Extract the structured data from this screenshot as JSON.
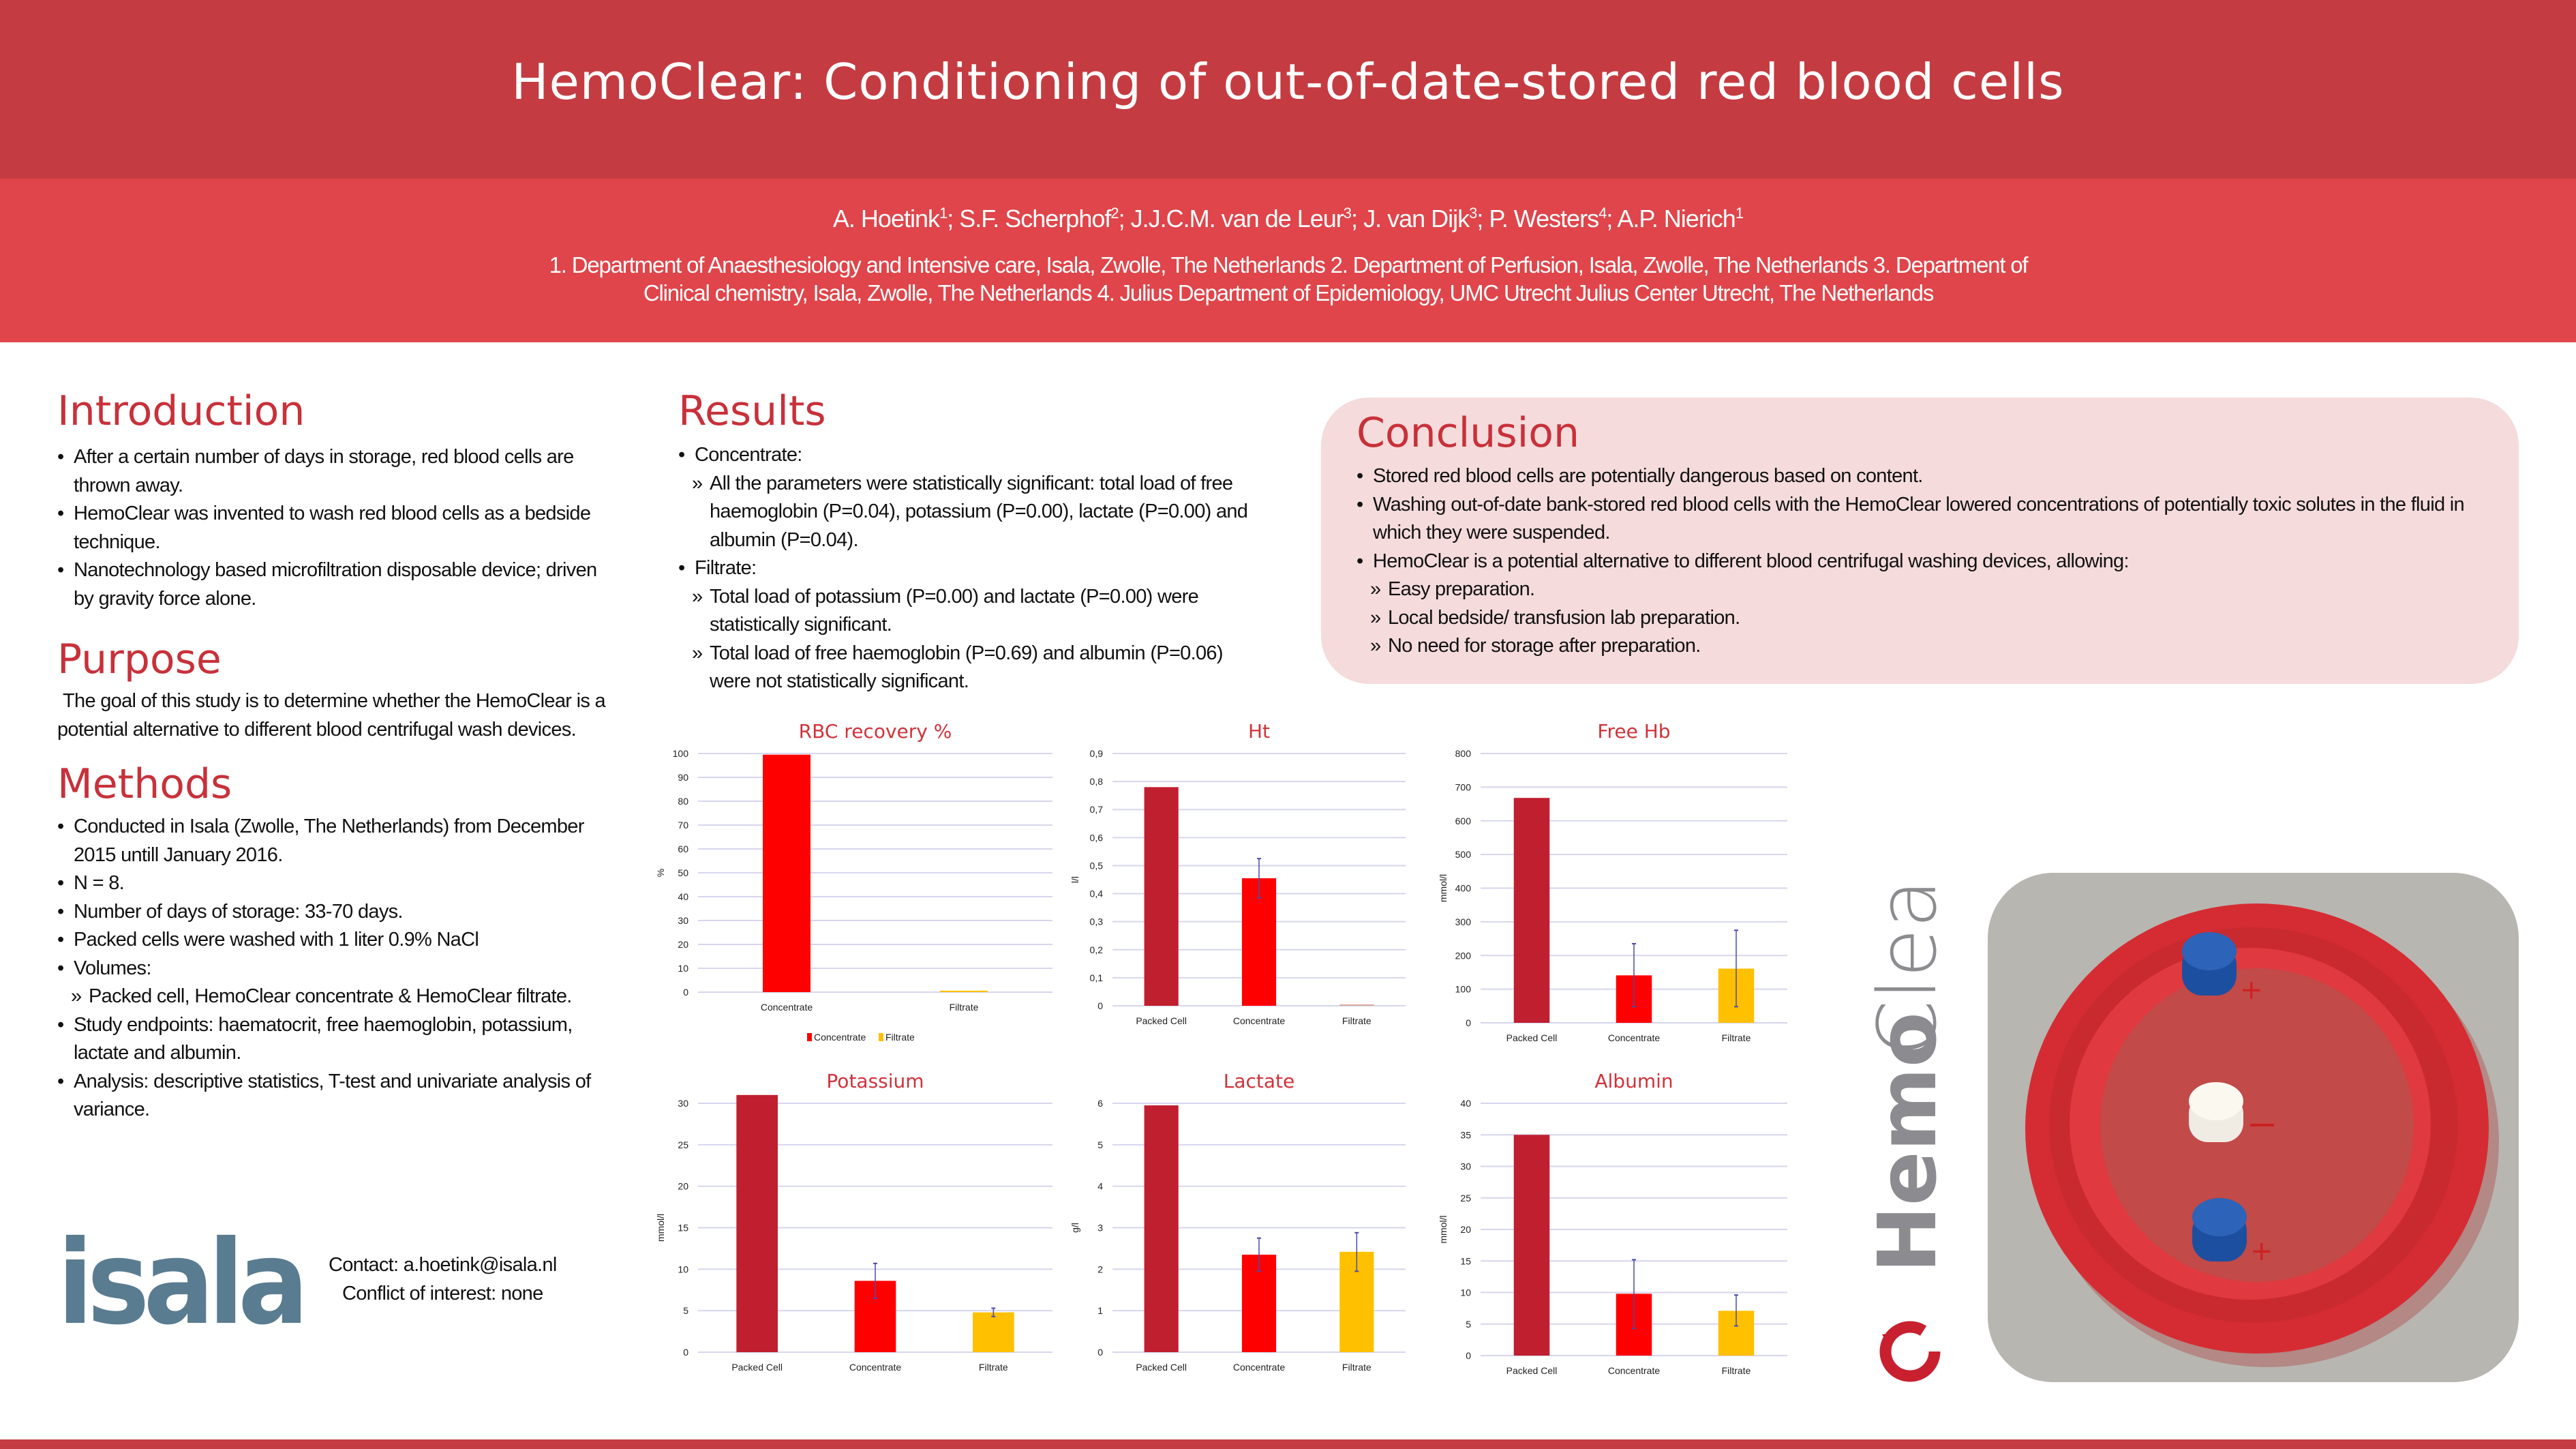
{
  "header": {
    "title": "HemoClear: Conditioning of out-of-date-stored red blood cells",
    "authors": [
      {
        "name": "A. Hoetink",
        "aff": "1"
      },
      {
        "name": "S.F. Scherphof",
        "aff": "2"
      },
      {
        "name": "J.J.C.M. van de Leur",
        "aff": "3"
      },
      {
        "name": "J. van Dijk",
        "aff": "3"
      },
      {
        "name": "P. Westers",
        "aff": "4"
      },
      {
        "name": "A.P. Nierich",
        "aff": "1"
      }
    ],
    "affiliations": "1. Department of Anaesthesiology and Intensive care, Isala, Zwolle, The Netherlands 2. Department of Perfusion, Isala, Zwolle, The Netherlands 3. Department of Clinical chemistry, Isala, Zwolle, The Netherlands 4. Julius Department of Epidemiology, UMC Utrecht Julius Center Utrecht, The Netherlands"
  },
  "introduction": {
    "heading": "Introduction",
    "items": [
      {
        "level": 0,
        "text": "After a certain number of days in storage, red blood cells are thrown away."
      },
      {
        "level": 0,
        "text": "HemoClear was invented to wash red blood cells as a bedside technique."
      },
      {
        "level": 0,
        "text": "Nanotechnology based microfiltration disposable device; driven by gravity force alone."
      }
    ]
  },
  "purpose": {
    "heading": "Purpose",
    "text": "The goal of this study is to determine whether the HemoClear is a potential alternative to different blood centrifugal wash devices."
  },
  "methods": {
    "heading": "Methods",
    "items": [
      {
        "level": 0,
        "text": "Conducted in Isala (Zwolle, The Netherlands) from December 2015 untill January 2016."
      },
      {
        "level": 0,
        "text": "N = 8."
      },
      {
        "level": 0,
        "text": "Number of days of storage: 33-70 days."
      },
      {
        "level": 0,
        "text": "Packed cells were washed with 1 liter 0.9% NaCl"
      },
      {
        "level": 0,
        "text": "Volumes:"
      },
      {
        "level": 1,
        "text": "Packed cell, HemoClear concentrate & HemoClear filtrate."
      },
      {
        "level": 0,
        "text": "Study endpoints: haematocrit, free haemoglobin, potassium, lactate and albumin."
      },
      {
        "level": 0,
        "text": "Analysis: descriptive statistics, T-test and univariate analysis of variance."
      }
    ]
  },
  "results": {
    "heading": "Results",
    "items": [
      {
        "level": 0,
        "text": "Concentrate:"
      },
      {
        "level": 1,
        "text": "All the parameters were statistically significant: total load of free haemoglobin (P=0.04), potassium (P=0.00), lactate (P=0.00) and albumin (P=0.04)."
      },
      {
        "level": 0,
        "text": "Filtrate:"
      },
      {
        "level": 1,
        "text": "Total load of potassium (P=0.00) and lactate (P=0.00) were statistically significant."
      },
      {
        "level": 1,
        "text": "Total load of free haemoglobin (P=0.69) and albumin (P=0.06) were not statistically significant."
      }
    ]
  },
  "conclusion": {
    "heading": "Conclusion",
    "items": [
      {
        "level": 0,
        "text": "Stored red blood cells are potentially dangerous based on content."
      },
      {
        "level": 0,
        "text": "Washing out-of-date bank-stored red blood cells with the HemoClear lowered concentrations of potentially toxic solutes in the fluid in which they were suspended."
      },
      {
        "level": 0,
        "text": "HemoClear is a potential alternative to different blood centrifugal washing devices, allowing:"
      },
      {
        "level": 1,
        "text": "Easy preparation."
      },
      {
        "level": 1,
        "text": "Local bedside/ transfusion lab preparation."
      },
      {
        "level": 1,
        "text": "No need for storage after preparation."
      }
    ]
  },
  "contact": {
    "email_line": "Contact: a.hoetink@isala.nl",
    "conflict_line": "Conflict of interest: none"
  },
  "logos": {
    "isala": "isala",
    "hemoclear_bold": "Hemo",
    "hemoclear_light": "Clear"
  },
  "colors": {
    "header_dark": "#c43c41",
    "header_light": "#df454a",
    "heading_red": "#c8313a",
    "packed_cell": "#c01f2f",
    "concentrate": "#ff0000",
    "filtrate": "#ffc000",
    "error_bar": "#4a4ab0",
    "conclusion_bg": "#f5dbdc"
  },
  "chart_data": [
    {
      "type": "bar",
      "title": "RBC recovery %",
      "ylabel": "%",
      "xlabel": "",
      "ylim": [
        0,
        100
      ],
      "yticks": [
        "0",
        "10",
        "20",
        "30",
        "40",
        "50",
        "60",
        "70",
        "80",
        "90",
        "100"
      ],
      "ytick_values": [
        0,
        10,
        20,
        30,
        40,
        50,
        60,
        70,
        80,
        90,
        100
      ],
      "grid": true,
      "legend": "bottom",
      "categories": [
        "Concentrate",
        "Filtrate"
      ],
      "values": [
        99.5,
        0.6
      ],
      "errors": [
        null,
        null
      ],
      "bar_colors": [
        "#ff0000",
        "#ffc000"
      ],
      "legend_entries": [
        {
          "name": "Concentrate",
          "color": "#ff0000"
        },
        {
          "name": "Filtrate",
          "color": "#ffc000"
        }
      ]
    },
    {
      "type": "bar",
      "title": "Ht",
      "ylabel": "l/l",
      "xlabel": "",
      "ylim": [
        0,
        0.9
      ],
      "yticks": [
        "0",
        "0,1",
        "0,2",
        "0,3",
        "0,4",
        "0,5",
        "0,6",
        "0,7",
        "0,8",
        "0,9"
      ],
      "ytick_values": [
        0,
        0.1,
        0.2,
        0.3,
        0.4,
        0.5,
        0.6,
        0.7,
        0.8,
        0.9
      ],
      "grid": true,
      "categories": [
        "Packed Cell",
        "Concentrate",
        "Filtrate"
      ],
      "values": [
        0.78,
        0.455,
        0.004
      ],
      "errors": [
        null,
        [
          0.385,
          0.525
        ],
        null
      ],
      "bar_colors": [
        "#c01f2f",
        "#ff0000",
        "#d9a8a0"
      ]
    },
    {
      "type": "bar",
      "title": "Free Hb",
      "ylabel": "mmol/l",
      "xlabel": "",
      "ylim": [
        0,
        800
      ],
      "yticks": [
        "0",
        "100",
        "200",
        "300",
        "400",
        "500",
        "600",
        "700",
        "800"
      ],
      "ytick_values": [
        0,
        100,
        200,
        300,
        400,
        500,
        600,
        700,
        800
      ],
      "grid": true,
      "categories": [
        "Packed Cell",
        "Concentrate",
        "Filtrate"
      ],
      "values": [
        668,
        141,
        161
      ],
      "errors": [
        null,
        [
          48,
          235
        ],
        [
          48,
          275
        ]
      ],
      "bar_colors": [
        "#c01f2f",
        "#ff0000",
        "#ffc000"
      ]
    },
    {
      "type": "bar",
      "title": "Potassium",
      "ylabel": "mmol/l",
      "xlabel": "",
      "ylim": [
        0,
        30
      ],
      "yticks": [
        "0",
        "5",
        "10",
        "15",
        "20",
        "25",
        "30"
      ],
      "ytick_values": [
        0,
        5,
        10,
        15,
        20,
        25,
        30
      ],
      "grid": true,
      "categories": [
        "Packed Cell",
        "Concentrate",
        "Filtrate"
      ],
      "values": [
        31,
        8.6,
        4.8
      ],
      "errors": [
        null,
        [
          6.5,
          10.7
        ],
        [
          4.3,
          5.3
        ]
      ],
      "bar_colors": [
        "#c01f2f",
        "#ff0000",
        "#ffc000"
      ]
    },
    {
      "type": "bar",
      "title": "Lactate",
      "ylabel": "g/l",
      "xlabel": "",
      "ylim": [
        0,
        6
      ],
      "yticks": [
        "0",
        "1",
        "2",
        "3",
        "4",
        "5",
        "6"
      ],
      "ytick_values": [
        0,
        1,
        2,
        3,
        4,
        5,
        6
      ],
      "grid": true,
      "categories": [
        "Packed Cell",
        "Concentrate",
        "Filtrate"
      ],
      "values": [
        5.95,
        2.35,
        2.42
      ],
      "errors": [
        null,
        [
          1.95,
          2.75
        ],
        [
          1.95,
          2.88
        ]
      ],
      "bar_colors": [
        "#c01f2f",
        "#ff0000",
        "#ffc000"
      ]
    },
    {
      "type": "bar",
      "title": "Albumin",
      "ylabel": "mmol/l",
      "xlabel": "",
      "ylim": [
        0,
        40
      ],
      "yticks": [
        "0",
        "5",
        "10",
        "15",
        "20",
        "25",
        "30",
        "35",
        "40"
      ],
      "ytick_values": [
        0,
        5,
        10,
        15,
        20,
        25,
        30,
        35,
        40
      ],
      "grid": true,
      "categories": [
        "Packed Cell",
        "Concentrate",
        "Filtrate"
      ],
      "values": [
        35,
        9.8,
        7.1
      ],
      "errors": [
        null,
        [
          4.3,
          15.2
        ],
        [
          4.7,
          9.6
        ]
      ],
      "bar_colors": [
        "#c01f2f",
        "#ff0000",
        "#ffc000"
      ]
    }
  ]
}
